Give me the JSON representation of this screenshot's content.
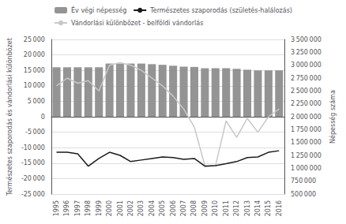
{
  "chart_data": {
    "type": "bar",
    "categories": [
      "1995",
      "1996",
      "1997",
      "1998",
      "1999",
      "2000",
      "2001",
      "2002",
      "2003",
      "2004",
      "2005",
      "2006",
      "2007",
      "2008",
      "2009",
      "2010",
      "2011",
      "2012",
      "2013",
      "2014",
      "2015",
      "2016"
    ],
    "series": [
      {
        "name": "Év végi népesség",
        "type": "bar",
        "color": "#888888",
        "values": [
          16000,
          16000,
          16000,
          16000,
          16000,
          17200,
          17200,
          17200,
          17200,
          17000,
          16800,
          16500,
          16200,
          16100,
          15700,
          15700,
          15700,
          15500,
          15200,
          15000,
          15000,
          15000
        ]
      },
      {
        "name": "Természetes szaporodás (születés-halálozás)",
        "type": "line",
        "color": "#1a1a1a",
        "values": [
          -11500,
          -11500,
          -12000,
          -16000,
          -13500,
          -11500,
          -12500,
          -14500,
          -14000,
          -13500,
          -13000,
          -13200,
          -13800,
          -13500,
          -16000,
          -15800,
          -15200,
          -14500,
          -13200,
          -13000,
          -11500,
          -11000
        ]
      },
      {
        "name": "Vándorlási különbözet - belföldi vándorlás",
        "type": "line",
        "color": "#c8c8c8",
        "axis": "y2",
        "values": [
          2600000,
          2750000,
          2650000,
          2700000,
          2500000,
          3000000,
          3050000,
          3000000,
          2900000,
          2750000,
          2600000,
          2400000,
          2150000,
          1800000,
          1050000,
          1050000,
          1920000,
          1600000,
          1970000,
          1700000,
          2000000,
          2150000
        ]
      }
    ],
    "ylabel": "Természetes szaporodás és vándorlási különbözet",
    "y2label": "Népesség száma",
    "ylim": [
      -25000,
      25000
    ],
    "yticks": [
      {
        "value": -25000,
        "label": "-25 000"
      },
      {
        "value": -20000,
        "label": "-20 000"
      },
      {
        "value": -15000,
        "label": "-15 000"
      },
      {
        "value": -10000,
        "label": "-10 000"
      },
      {
        "value": -5000,
        "label": "-5 000"
      },
      0,
      {
        "value": 5000,
        "label": "5 000"
      },
      {
        "value": 10000,
        "label": "10 000"
      },
      {
        "value": 15000,
        "label": "15 000"
      },
      {
        "value": 20000,
        "label": "20 000"
      },
      {
        "value": 25000,
        "label": "25 000"
      }
    ],
    "y2lim": [
      500000,
      3500000
    ],
    "y2ticks": [
      {
        "value": 500000,
        "label": "500 000"
      },
      {
        "value": 750000,
        "label": "750 000"
      },
      {
        "value": 1000000,
        "label": "1 000 000"
      },
      {
        "value": 1250000,
        "label": "1 250 000"
      },
      {
        "value": 1500000,
        "label": "1 500 000"
      },
      {
        "value": 1750000,
        "label": "1 750 000"
      },
      {
        "value": 2000000,
        "label": "2 000 000"
      },
      {
        "value": 2250000,
        "label": "2 250 000"
      },
      {
        "value": 2500000,
        "label": "2 500 000"
      },
      {
        "value": 2750000,
        "label": "2 750 000"
      },
      {
        "value": 3000000,
        "label": "3 000 000"
      },
      {
        "value": 3250000,
        "label": "3 250 000"
      },
      {
        "value": 3500000,
        "label": "3 500 000"
      }
    ],
    "grid": true,
    "legend": "top"
  }
}
